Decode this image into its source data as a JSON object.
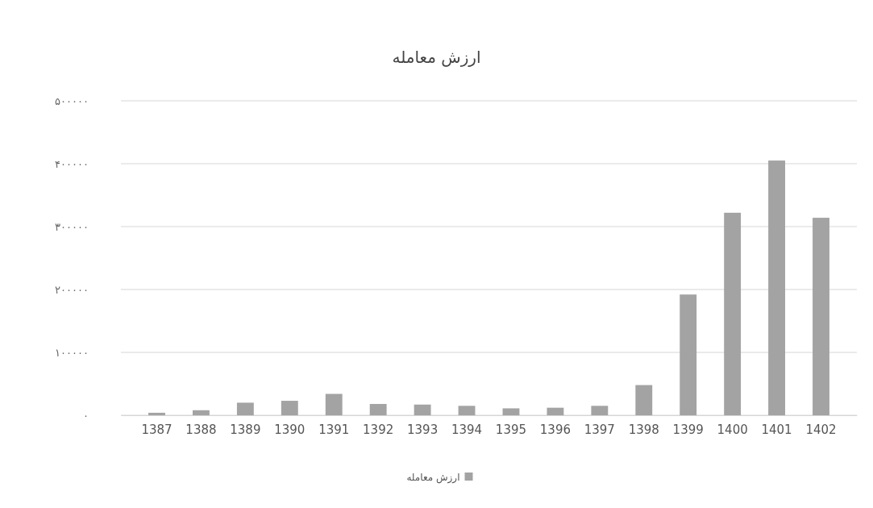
{
  "chart_data": {
    "type": "bar",
    "title": "ارزش معامله",
    "categories": [
      "1387",
      "1388",
      "1389",
      "1390",
      "1391",
      "1392",
      "1393",
      "1394",
      "1395",
      "1396",
      "1397",
      "1398",
      "1399",
      "1400",
      "1401",
      "1402"
    ],
    "series": [
      {
        "name": "ارزش معامله",
        "color": "#a3a3a3",
        "values": [
          4000,
          8000,
          20000,
          23000,
          34000,
          18000,
          17000,
          15000,
          11000,
          12000,
          15000,
          48000,
          192000,
          322000,
          405000,
          314000
        ]
      }
    ],
    "ylim": [
      0,
      500000
    ],
    "yticks": [
      {
        "value": 0,
        "label": "۰"
      },
      {
        "value": 100000,
        "label": "۱۰۰۰۰۰"
      },
      {
        "value": 200000,
        "label": "۲۰۰۰۰۰"
      },
      {
        "value": 300000,
        "label": "۳۰۰۰۰۰"
      },
      {
        "value": 400000,
        "label": "۴۰۰۰۰۰"
      },
      {
        "value": 500000,
        "label": "۵۰۰۰۰۰"
      }
    ],
    "grid": "y",
    "legend": "bottom"
  }
}
